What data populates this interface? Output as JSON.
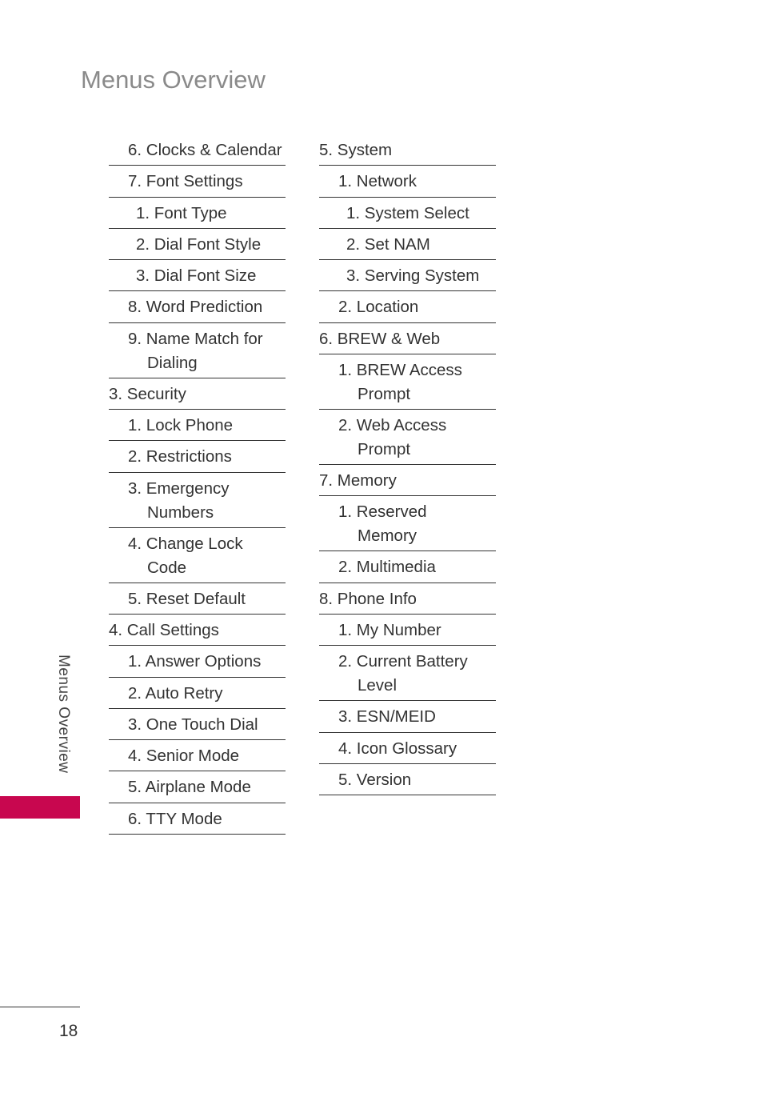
{
  "title": "Menus Overview",
  "side_tab": {
    "label": "Menus Overview",
    "color": "#c8074f"
  },
  "page_number": "18",
  "columns": [
    [
      {
        "level": 1,
        "lines": [
          "6. Clocks & Calendar"
        ]
      },
      {
        "level": 1,
        "lines": [
          "7. Font Settings"
        ]
      },
      {
        "level": 2,
        "lines": [
          "1. Font Type"
        ]
      },
      {
        "level": 2,
        "lines": [
          "2. Dial Font Style"
        ]
      },
      {
        "level": 2,
        "lines": [
          "3. Dial Font Size"
        ]
      },
      {
        "level": 1,
        "lines": [
          "8. Word Prediction"
        ]
      },
      {
        "level": 1,
        "lines": [
          "9. Name Match for",
          "Dialing"
        ]
      },
      {
        "level": 0,
        "lines": [
          "3. Security"
        ]
      },
      {
        "level": 1,
        "lines": [
          "1. Lock Phone"
        ]
      },
      {
        "level": 1,
        "lines": [
          "2. Restrictions"
        ]
      },
      {
        "level": 1,
        "lines": [
          "3. Emergency",
          "Numbers"
        ]
      },
      {
        "level": 1,
        "lines": [
          "4. Change Lock",
          "Code"
        ]
      },
      {
        "level": 1,
        "lines": [
          "5. Reset Default"
        ]
      },
      {
        "level": 0,
        "lines": [
          "4. Call Settings"
        ]
      },
      {
        "level": 1,
        "lines": [
          "1. Answer Options"
        ]
      },
      {
        "level": 1,
        "lines": [
          "2. Auto Retry"
        ]
      },
      {
        "level": 1,
        "lines": [
          "3. One Touch Dial"
        ]
      },
      {
        "level": 1,
        "lines": [
          "4. Senior Mode"
        ]
      },
      {
        "level": 1,
        "lines": [
          "5. Airplane Mode"
        ]
      },
      {
        "level": 1,
        "lines": [
          "6. TTY Mode"
        ]
      }
    ],
    [
      {
        "level": 0,
        "lines": [
          "5. System"
        ]
      },
      {
        "level": 1,
        "lines": [
          "1. Network"
        ]
      },
      {
        "level": 2,
        "lines": [
          "1. System Select"
        ]
      },
      {
        "level": 2,
        "lines": [
          "2. Set NAM"
        ]
      },
      {
        "level": 2,
        "lines": [
          "3. Serving System"
        ]
      },
      {
        "level": 1,
        "lines": [
          "2. Location"
        ]
      },
      {
        "level": 0,
        "lines": [
          "6. BREW & Web"
        ]
      },
      {
        "level": 1,
        "lines": [
          "1. BREW Access",
          "Prompt"
        ]
      },
      {
        "level": 1,
        "lines": [
          "2. Web Access",
          "Prompt"
        ]
      },
      {
        "level": 0,
        "lines": [
          "7. Memory"
        ]
      },
      {
        "level": 1,
        "lines": [
          "1. Reserved",
          "Memory"
        ]
      },
      {
        "level": 1,
        "lines": [
          "2. Multimedia"
        ]
      },
      {
        "level": 0,
        "lines": [
          "8. Phone Info"
        ]
      },
      {
        "level": 1,
        "lines": [
          "1. My Number"
        ]
      },
      {
        "level": 1,
        "lines": [
          "2. Current Battery",
          "Level"
        ]
      },
      {
        "level": 1,
        "lines": [
          "3. ESN/MEID"
        ]
      },
      {
        "level": 1,
        "lines": [
          "4. Icon Glossary"
        ]
      },
      {
        "level": 1,
        "lines": [
          "5. Version"
        ]
      }
    ]
  ]
}
